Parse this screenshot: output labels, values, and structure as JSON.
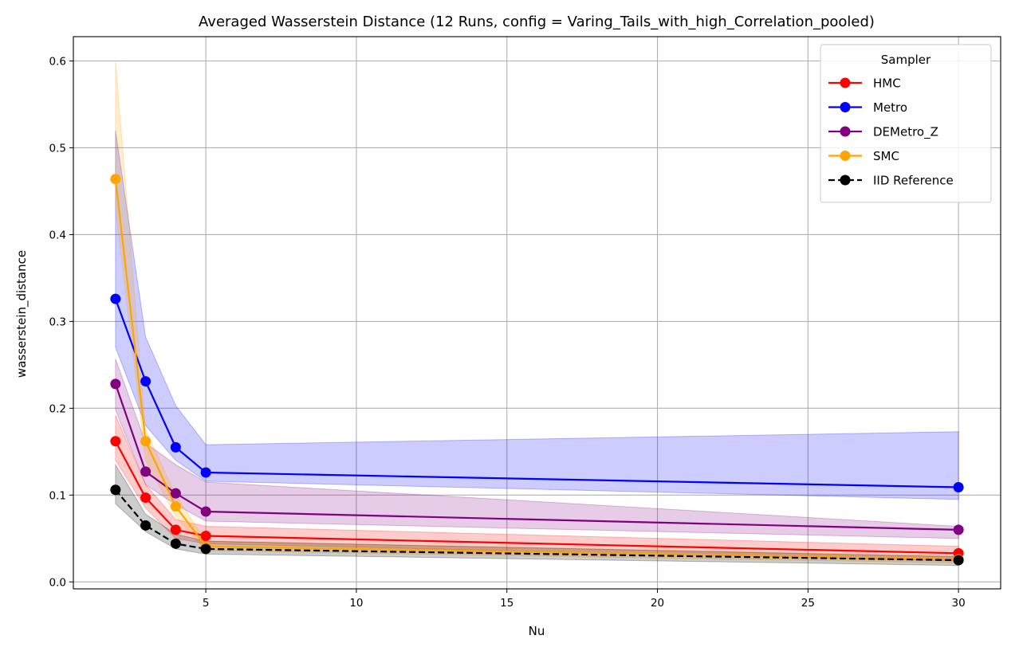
{
  "chart_data": {
    "type": "line",
    "title": "Averaged Wasserstein Distance (12 Runs, config = Varing_Tails_with_high_Correlation_pooled)",
    "xlabel": "Nu",
    "ylabel": "wasserstein_distance",
    "x": [
      2,
      3,
      4,
      5,
      30
    ],
    "xlim": [
      0.6,
      31.4
    ],
    "ylim": [
      -0.008,
      0.628
    ],
    "xticks": [
      5,
      10,
      15,
      20,
      25,
      30
    ],
    "xtick_labels": [
      "5",
      "10",
      "15",
      "20",
      "25",
      "30"
    ],
    "yticks": [
      0.0,
      0.1,
      0.2,
      0.3,
      0.4,
      0.5,
      0.6
    ],
    "ytick_labels": [
      "0.0",
      "0.1",
      "0.2",
      "0.3",
      "0.4",
      "0.5",
      "0.6"
    ],
    "grid": true,
    "legend": {
      "title": "Sampler",
      "position": "top-right"
    },
    "series": [
      {
        "name": "DEMetro_Z",
        "color": "#800080",
        "dashed": false,
        "values": [
          0.228,
          0.127,
          0.102,
          0.081,
          0.06
        ],
        "lower": [
          0.198,
          0.112,
          0.089,
          0.07,
          0.05
        ],
        "upper": [
          0.257,
          0.16,
          0.135,
          0.115,
          0.064
        ]
      },
      {
        "name": "Metro",
        "color": "#0000ff",
        "dashed": false,
        "values": [
          0.326,
          0.231,
          0.155,
          0.126,
          0.109
        ],
        "lower": [
          0.27,
          0.18,
          0.14,
          0.116,
          0.095
        ],
        "upper": [
          0.52,
          0.282,
          0.203,
          0.158,
          0.173
        ]
      },
      {
        "name": "HMC",
        "color": "#ff0000",
        "dashed": false,
        "values": [
          0.162,
          0.097,
          0.06,
          0.053,
          0.033
        ],
        "lower": [
          0.14,
          0.085,
          0.05,
          0.044,
          0.024
        ],
        "upper": [
          0.192,
          0.112,
          0.072,
          0.064,
          0.041
        ]
      },
      {
        "name": "SMC",
        "color": "#ffa500",
        "dashed": false,
        "values": [
          0.464,
          0.162,
          0.087,
          0.041,
          0.026
        ],
        "lower": [
          0.43,
          0.14,
          0.075,
          0.036,
          0.022
        ],
        "upper": [
          0.6,
          0.175,
          0.1,
          0.047,
          0.03
        ]
      },
      {
        "name": "IID Reference",
        "color": "#000000",
        "dashed": true,
        "values": [
          0.106,
          0.065,
          0.044,
          0.038,
          0.025
        ],
        "lower": [
          0.09,
          0.058,
          0.038,
          0.032,
          0.019
        ],
        "upper": [
          0.135,
          0.078,
          0.055,
          0.047,
          0.029
        ]
      }
    ],
    "legend_order": [
      "HMC",
      "Metro",
      "DEMetro_Z",
      "SMC",
      "IID Reference"
    ]
  }
}
